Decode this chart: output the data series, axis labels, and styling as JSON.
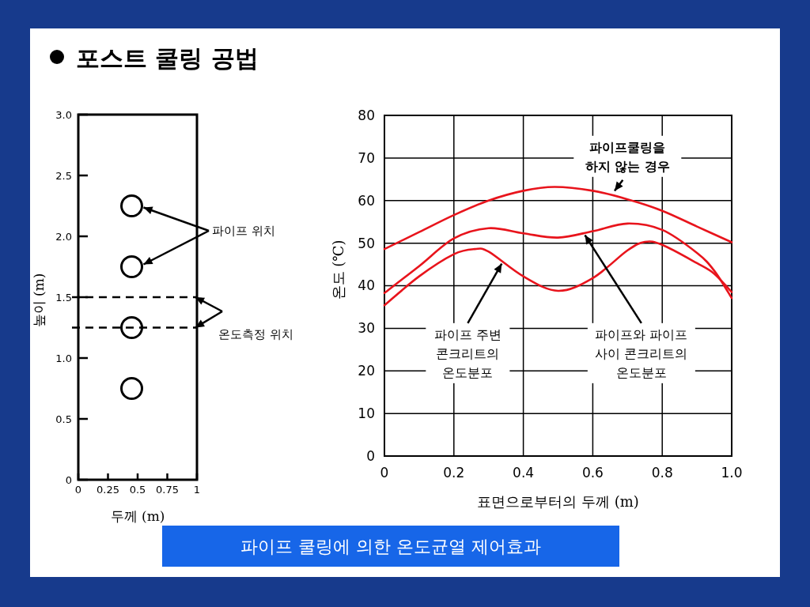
{
  "chart_data": [
    {
      "type": "scatter",
      "title": "포스트 쿨링 공법",
      "xlabel": "두께 (m)",
      "ylabel": "높이 (m)",
      "xlim": [
        0,
        1
      ],
      "xticks": [
        0,
        0.25,
        0.5,
        0.75,
        1
      ],
      "ylim": [
        0,
        3
      ],
      "yticks": [
        {
          "value": 0,
          "label": "0"
        },
        0.5,
        {
          "value": 1,
          "label": "1.0"
        },
        1.5,
        {
          "value": 2,
          "label": "2.0"
        },
        2.5,
        {
          "value": 3,
          "label": "3.0"
        }
      ],
      "marker": "circle",
      "series": [
        {
          "color": "#000000",
          "x": [
            0.45,
            0.45,
            0.45,
            0.45
          ],
          "values": [
            2.25,
            1.75,
            1.25,
            0.75
          ]
        }
      ],
      "ref_lines": [
        {
          "axis": "y",
          "value": 1.5,
          "color": "#000000",
          "line_style": "dashed"
        },
        {
          "axis": "y",
          "value": 1.25,
          "color": "#000000",
          "line_style": "dashed"
        }
      ],
      "annotations": [
        "파이프 위치",
        "온도측정 위치"
      ]
    },
    {
      "type": "line",
      "xlabel": "표면으로부터의 두께 (m)",
      "ylabel": "온도 (℃)",
      "xlim": [
        0,
        1
      ],
      "xticks": [
        0,
        0.2,
        0.4,
        0.6,
        0.8,
        {
          "value": 1,
          "label": "1.0"
        }
      ],
      "ylim": [
        0,
        80
      ],
      "yticks": [
        0,
        10,
        20,
        30,
        40,
        50,
        60,
        70,
        80
      ],
      "grid": true,
      "series": [
        {
          "color": "#e8141c",
          "x": [
            0,
            0.1,
            0.2,
            0.3,
            0.4,
            0.49,
            0.6,
            0.7,
            0.8,
            0.9,
            1
          ],
          "values": [
            48.6,
            52.6,
            56.6,
            60,
            62.3,
            63.2,
            62.3,
            60.3,
            57.6,
            53.9,
            50.2
          ]
        },
        {
          "color": "#e8141c",
          "x": [
            0,
            0.1,
            0.2,
            0.3,
            0.4,
            0.5,
            0.6,
            0.7,
            0.8,
            0.9,
            0.95,
            1
          ],
          "values": [
            38.3,
            44.6,
            51.1,
            53.5,
            52.3,
            51.3,
            52.8,
            54.6,
            53.1,
            47.7,
            43.5,
            37.1
          ]
        },
        {
          "color": "#e8141c",
          "x": [
            0,
            0.1,
            0.2,
            0.26,
            0.3,
            0.4,
            0.5,
            0.6,
            0.7,
            0.75,
            0.8,
            0.9,
            0.95,
            1
          ],
          "values": [
            35.4,
            42.2,
            47.4,
            48.6,
            48,
            42.2,
            38.8,
            41.8,
            48.3,
            50.3,
            49.6,
            45.3,
            42.8,
            38.5
          ]
        }
      ],
      "annotations": [
        {
          "text": "파이프쿨링을\n하지 않는 경우",
          "x": 0.66,
          "y": 62
        },
        {
          "text": "파이프 주변\n콘크리트의\n온도분포",
          "x": 0.34,
          "y": 45.5
        },
        {
          "text": "파이프와 파이프\n사이 콘크리트의\n온도분포",
          "x": 0.575,
          "y": 52.2
        }
      ]
    },
    {
      "type": "other",
      "annotations": [
        "파이프 쿨링에 의한 온도균열 제어효과"
      ]
    }
  ]
}
